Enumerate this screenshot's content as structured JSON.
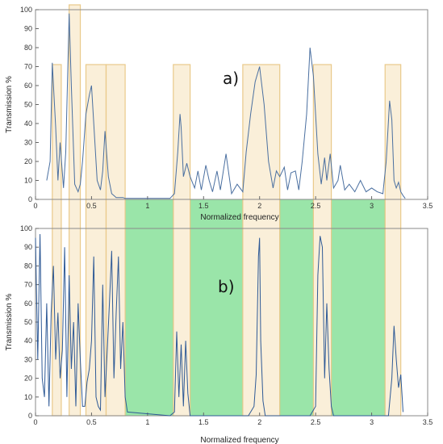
{
  "chart_data": [
    {
      "type": "line",
      "panel_label": "a)",
      "xlabel": "Normalized frequency",
      "ylabel": "Transmission %",
      "xlim": [
        0,
        3.5
      ],
      "ylim": [
        0,
        100
      ],
      "xticks": [
        "0",
        "0.5",
        "1",
        "1.5",
        "2",
        "2.5",
        "3",
        "3.5"
      ],
      "yticks": [
        "0",
        "10",
        "20",
        "30",
        "40",
        "50",
        "60",
        "70",
        "80",
        "90",
        "100"
      ],
      "grid": false,
      "series": [
        {
          "color": "#4a6fa0",
          "x": [
            0.1,
            0.13,
            0.15,
            0.18,
            0.2,
            0.22,
            0.25,
            0.27,
            0.3,
            0.32,
            0.35,
            0.38,
            0.4,
            0.42,
            0.45,
            0.48,
            0.5,
            0.52,
            0.55,
            0.58,
            0.6,
            0.62,
            0.65,
            0.68,
            0.7,
            0.72,
            0.75,
            0.78,
            0.8,
            1.2,
            1.24,
            1.27,
            1.29,
            1.3,
            1.32,
            1.35,
            1.38,
            1.42,
            1.45,
            1.48,
            1.52,
            1.55,
            1.58,
            1.62,
            1.65,
            1.7,
            1.75,
            1.8,
            1.85,
            1.88,
            1.92,
            1.96,
            2.0,
            2.04,
            2.08,
            2.12,
            2.15,
            2.18,
            2.22,
            2.25,
            2.28,
            2.32,
            2.35,
            2.38,
            2.42,
            2.45,
            2.48,
            2.52,
            2.55,
            2.58,
            2.6,
            2.63,
            2.66,
            2.7,
            2.72,
            2.76,
            2.8,
            2.85,
            2.9,
            2.95,
            3.0,
            3.05,
            3.1,
            3.13,
            3.16,
            3.18,
            3.2,
            3.22,
            3.24,
            3.26,
            3.28,
            3.3
          ],
          "y": [
            10,
            20,
            72,
            38,
            10,
            30,
            6,
            25,
            98,
            60,
            8,
            4,
            8,
            20,
            45,
            55,
            60,
            40,
            10,
            5,
            15,
            36,
            12,
            3,
            2,
            1,
            1,
            1,
            0.5,
            0.5,
            3,
            25,
            45,
            38,
            12,
            19,
            12,
            6,
            15,
            5,
            18,
            10,
            4,
            15,
            5,
            24,
            3,
            8,
            4,
            25,
            45,
            62,
            70,
            50,
            20,
            6,
            15,
            12,
            17,
            5,
            14,
            15,
            5,
            20,
            45,
            80,
            65,
            24,
            8,
            22,
            10,
            24,
            6,
            10,
            18,
            5,
            8,
            4,
            10,
            4,
            6,
            4,
            3,
            20,
            52,
            42,
            10,
            6,
            9,
            4,
            2,
            0.5
          ]
        }
      ]
    },
    {
      "type": "line",
      "panel_label": "b)",
      "xlabel": "Normalized frequency",
      "ylabel": "Transmission %",
      "xlim": [
        0,
        3.5
      ],
      "ylim": [
        0,
        100
      ],
      "xticks": [
        "0",
        "0.5",
        "1",
        "1.5",
        "2",
        "2.5",
        "3",
        "3.5"
      ],
      "yticks": [
        "0",
        "10",
        "20",
        "30",
        "40",
        "50",
        "60",
        "70",
        "80",
        "90",
        "100"
      ],
      "grid": false,
      "series": [
        {
          "color": "#2f5a96",
          "x": [
            0.0,
            0.02,
            0.04,
            0.06,
            0.08,
            0.1,
            0.12,
            0.14,
            0.16,
            0.18,
            0.2,
            0.22,
            0.24,
            0.26,
            0.28,
            0.3,
            0.32,
            0.34,
            0.36,
            0.38,
            0.4,
            0.42,
            0.44,
            0.46,
            0.48,
            0.5,
            0.52,
            0.54,
            0.56,
            0.58,
            0.6,
            0.62,
            0.64,
            0.66,
            0.68,
            0.7,
            0.72,
            0.74,
            0.76,
            0.78,
            0.8,
            0.82,
            1.2,
            1.24,
            1.26,
            1.28,
            1.3,
            1.32,
            1.34,
            1.36,
            1.38,
            1.9,
            1.95,
            1.97,
            1.99,
            2.0,
            2.01,
            2.03,
            2.05,
            2.45,
            2.5,
            2.52,
            2.54,
            2.56,
            2.58,
            2.6,
            2.62,
            2.64,
            2.66,
            3.15,
            3.18,
            3.2,
            3.22,
            3.24,
            3.26,
            3.28
          ],
          "y": [
            95,
            30,
            97,
            20,
            10,
            60,
            5,
            55,
            80,
            30,
            55,
            20,
            35,
            90,
            10,
            75,
            25,
            50,
            5,
            60,
            30,
            5,
            5,
            18,
            25,
            40,
            85,
            10,
            5,
            3,
            70,
            10,
            35,
            60,
            88,
            20,
            55,
            85,
            25,
            50,
            10,
            2,
            0,
            2,
            45,
            10,
            38,
            5,
            40,
            12,
            0,
            0,
            5,
            22,
            85,
            95,
            40,
            8,
            0,
            0,
            5,
            75,
            96,
            90,
            20,
            60,
            25,
            5,
            0,
            0,
            20,
            48,
            30,
            15,
            22,
            2
          ]
        }
      ]
    }
  ],
  "colors": {
    "highlight_band": "#f5dcab",
    "green_band": "#78dc8c",
    "frame": "#8a8a8a"
  }
}
